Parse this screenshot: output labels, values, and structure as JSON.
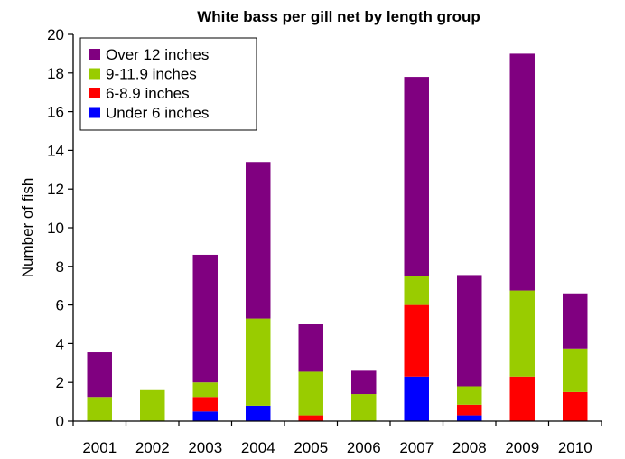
{
  "chart_data": {
    "type": "bar",
    "stacked": true,
    "title": "White bass per gill net by length group",
    "xlabel": "",
    "ylabel": "Number of fish",
    "ylim": [
      0,
      20
    ],
    "yticks": [
      0,
      2,
      4,
      6,
      8,
      10,
      12,
      14,
      16,
      18,
      20
    ],
    "grid": false,
    "legend_position": "top-left",
    "categories": [
      "2001",
      "2002",
      "2003",
      "2004",
      "2005",
      "2006",
      "2007",
      "2008",
      "2009",
      "2010"
    ],
    "series": [
      {
        "name": "Under 6 inches",
        "color": "#0000ff",
        "values": [
          0,
          0,
          0.5,
          0.8,
          0,
          0,
          2.3,
          0.3,
          0,
          0
        ]
      },
      {
        "name": "6-8.9 inches",
        "color": "#ff0000",
        "values": [
          0,
          0,
          0.75,
          0,
          0.3,
          0,
          3.7,
          0.55,
          2.3,
          1.5
        ]
      },
      {
        "name": "9-11.9 inches",
        "color": "#99cc00",
        "values": [
          1.25,
          1.6,
          0.75,
          4.5,
          2.25,
          1.4,
          1.5,
          0.95,
          4.45,
          2.25
        ]
      },
      {
        "name": "Over 12 inches",
        "color": "#800080",
        "values": [
          2.3,
          0,
          6.6,
          8.1,
          2.45,
          1.2,
          10.3,
          5.75,
          12.25,
          2.85
        ]
      }
    ],
    "legend_order": [
      "Over 12 inches",
      "9-11.9 inches",
      "6-8.9 inches",
      "Under 6 inches"
    ]
  }
}
